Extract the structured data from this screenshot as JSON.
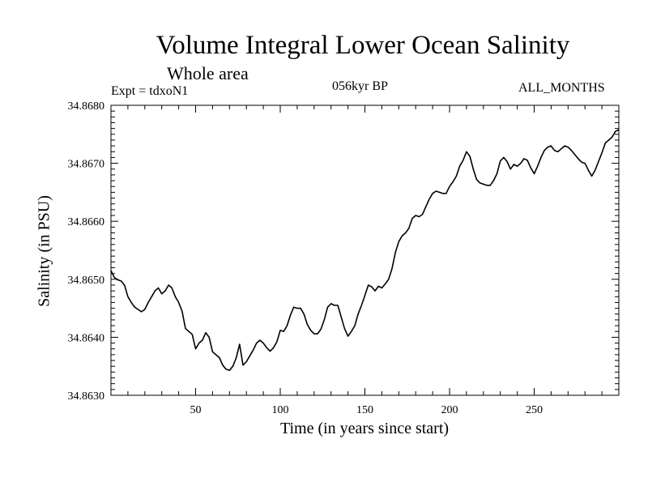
{
  "chart_data": {
    "type": "line",
    "title": "Volume Integral Lower Ocean Salinity",
    "subtitle": "Whole area",
    "experiment_label": "Expt = tdxoN1",
    "period_label": "056kyr BP",
    "months_label": "ALL_MONTHS",
    "xlabel": "Time (in years since start)",
    "ylabel": "Salinity (in PSU)",
    "xlim": [
      0,
      300
    ],
    "ylim": [
      34.863,
      34.868
    ],
    "xticks": [
      50,
      100,
      150,
      200,
      250
    ],
    "xtick_labels": [
      "50",
      "100",
      "150",
      "200",
      "250"
    ],
    "yticks": [
      34.863,
      34.864,
      34.865,
      34.866,
      34.867,
      34.868
    ],
    "ytick_labels": [
      "34.8630",
      "34.8640",
      "34.8650",
      "34.8660",
      "34.8670",
      "34.8680"
    ],
    "series": [
      {
        "name": "salinity",
        "x": [
          0,
          2,
          4,
          6,
          8,
          10,
          12,
          14,
          16,
          18,
          20,
          22,
          24,
          26,
          28,
          30,
          32,
          34,
          36,
          38,
          40,
          42,
          44,
          46,
          48,
          50,
          52,
          54,
          56,
          58,
          60,
          62,
          64,
          66,
          68,
          70,
          72,
          74,
          76,
          78,
          80,
          82,
          84,
          86,
          88,
          90,
          92,
          94,
          96,
          98,
          100,
          102,
          104,
          106,
          108,
          110,
          112,
          114,
          116,
          118,
          120,
          122,
          124,
          126,
          128,
          130,
          132,
          134,
          136,
          138,
          140,
          142,
          144,
          146,
          148,
          150,
          152,
          154,
          156,
          158,
          160,
          162,
          164,
          166,
          168,
          170,
          172,
          174,
          176,
          178,
          180,
          182,
          184,
          186,
          188,
          190,
          192,
          194,
          196,
          198,
          200,
          202,
          204,
          206,
          208,
          210,
          212,
          214,
          216,
          218,
          220,
          222,
          224,
          226,
          228,
          230,
          232,
          234,
          236,
          238,
          240,
          242,
          244,
          246,
          248,
          250,
          252,
          254,
          256,
          258,
          260,
          262,
          264,
          266,
          268,
          270,
          272,
          274,
          276,
          278,
          280,
          282,
          284,
          286,
          288,
          290,
          292,
          294,
          296,
          298,
          300
        ],
        "y": [
          34.86515,
          34.86503,
          34.86499,
          34.86497,
          34.8649,
          34.8647,
          34.8646,
          34.86452,
          34.86448,
          34.86444,
          34.86448,
          34.8646,
          34.8647,
          34.8648,
          34.86485,
          34.86475,
          34.8648,
          34.8649,
          34.86485,
          34.8647,
          34.8646,
          34.86445,
          34.86415,
          34.8641,
          34.86405,
          34.8638,
          34.8639,
          34.86395,
          34.86408,
          34.864,
          34.86375,
          34.8637,
          34.86365,
          34.86352,
          34.86345,
          34.86343,
          34.8635,
          34.86365,
          34.86388,
          34.86352,
          34.86358,
          34.86368,
          34.86378,
          34.8639,
          34.86395,
          34.8639,
          34.86382,
          34.86376,
          34.86382,
          34.86392,
          34.86412,
          34.8641,
          34.8642,
          34.86438,
          34.86452,
          34.8645,
          34.8645,
          34.8644,
          34.86422,
          34.86412,
          34.86406,
          34.86406,
          34.86414,
          34.8643,
          34.86452,
          34.86458,
          34.86455,
          34.86455,
          34.86435,
          34.86415,
          34.86402,
          34.8641,
          34.8642,
          34.8644,
          34.86455,
          34.86472,
          34.8649,
          34.86487,
          34.8648,
          34.86488,
          34.86485,
          34.86492,
          34.865,
          34.86518,
          34.86546,
          34.86565,
          34.86575,
          34.8658,
          34.86588,
          34.86605,
          34.8661,
          34.86608,
          34.86612,
          34.86625,
          34.86638,
          34.86648,
          34.86652,
          34.8665,
          34.86648,
          34.86648,
          34.8666,
          34.86668,
          34.86678,
          34.86695,
          34.86705,
          34.8672,
          34.86712,
          34.8669,
          34.86672,
          34.86666,
          34.86664,
          34.86662,
          34.86662,
          34.8667,
          34.86682,
          34.86704,
          34.8671,
          34.86703,
          34.8669,
          34.86698,
          34.86695,
          34.867,
          34.86708,
          34.86705,
          34.86692,
          34.86682,
          34.86695,
          34.8671,
          34.86722,
          34.86728,
          34.8673,
          34.86722,
          34.8672,
          34.86725,
          34.8673,
          34.86728,
          34.86722,
          34.86715,
          34.86708,
          34.86702,
          34.867,
          34.86688,
          34.86678,
          34.86688,
          34.86703,
          34.86718,
          34.86735,
          34.8674,
          34.86745,
          34.86755,
          34.86758
        ]
      }
    ]
  }
}
